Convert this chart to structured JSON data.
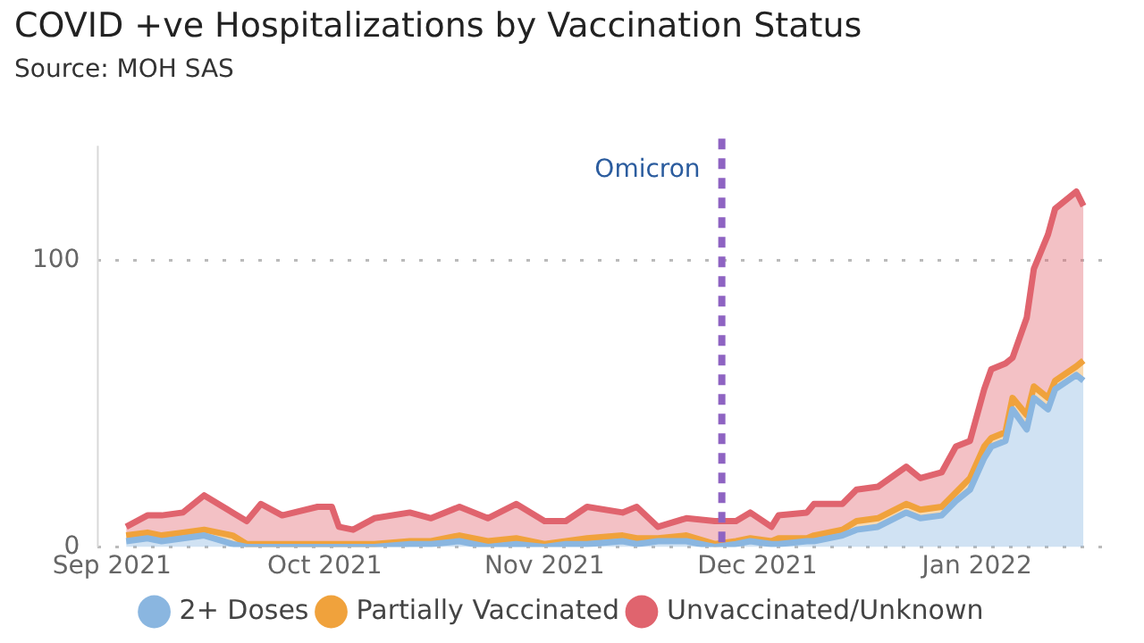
{
  "chart_data": {
    "type": "area",
    "title": "COVID +ve Hospitalizations by Vaccination Status",
    "subtitle": "Source: MOH SAS",
    "stacked": true,
    "x": [
      "2021-09-03",
      "2021-09-06",
      "2021-09-08",
      "2021-09-11",
      "2021-09-14",
      "2021-09-18",
      "2021-09-20",
      "2021-09-22",
      "2021-09-25",
      "2021-09-30",
      "2021-10-02",
      "2021-10-03",
      "2021-10-05",
      "2021-10-08",
      "2021-10-13",
      "2021-10-16",
      "2021-10-20",
      "2021-10-24",
      "2021-10-28",
      "2021-11-01",
      "2021-11-04",
      "2021-11-07",
      "2021-11-12",
      "2021-11-14",
      "2021-11-17",
      "2021-11-21",
      "2021-11-25",
      "2021-11-28",
      "2021-11-30",
      "2021-12-03",
      "2021-12-04",
      "2021-12-08",
      "2021-12-09",
      "2021-12-13",
      "2021-12-15",
      "2021-12-18",
      "2021-12-22",
      "2021-12-24",
      "2021-12-27",
      "2021-12-29",
      "2021-12-31",
      "2022-01-02",
      "2022-01-03",
      "2022-01-05",
      "2022-01-06",
      "2022-01-08",
      "2022-01-09",
      "2022-01-11",
      "2022-01-12",
      "2022-01-15",
      "2022-01-16"
    ],
    "series": [
      {
        "name": "2+ Doses",
        "color": "#8ab6e0",
        "values": [
          2,
          3,
          2,
          3,
          4,
          1,
          0,
          0,
          0,
          0,
          0,
          0,
          0,
          0,
          1,
          1,
          2,
          0,
          1,
          0,
          1,
          1,
          2,
          1,
          2,
          2,
          0,
          1,
          2,
          1,
          1,
          2,
          2,
          4,
          6,
          7,
          12,
          10,
          11,
          16,
          20,
          31,
          35,
          37,
          48,
          41,
          52,
          48,
          55,
          60,
          58
        ]
      },
      {
        "name": "Partially Vaccinated",
        "color": "#f0a23c",
        "values": [
          2,
          2,
          2,
          2,
          2,
          3,
          1,
          1,
          1,
          1,
          1,
          1,
          1,
          1,
          1,
          1,
          2,
          2,
          2,
          1,
          1,
          2,
          2,
          2,
          1,
          2,
          1,
          1,
          1,
          1,
          2,
          1,
          2,
          2,
          3,
          3,
          3,
          3,
          3,
          3,
          4,
          4,
          3,
          3,
          4,
          5,
          4,
          4,
          3,
          3,
          7
        ]
      },
      {
        "name": "Unvaccinated/Unknown",
        "color": "#e0646e",
        "values": [
          3,
          6,
          7,
          7,
          12,
          8,
          8,
          14,
          10,
          13,
          13,
          6,
          5,
          9,
          10,
          8,
          10,
          8,
          12,
          8,
          7,
          11,
          8,
          11,
          4,
          6,
          8,
          7,
          9,
          5,
          8,
          9,
          11,
          9,
          11,
          11,
          13,
          11,
          12,
          16,
          13,
          20,
          24,
          24,
          14,
          34,
          41,
          57,
          60,
          61,
          54
        ]
      }
    ],
    "xlim": [
      "2021-08-30",
      "2022-01-20"
    ],
    "xticks": [
      {
        "value": "2021-09-01",
        "label": "Sep 2021"
      },
      {
        "value": "2021-10-01",
        "label": "Oct 2021"
      },
      {
        "value": "2021-11-01",
        "label": "Nov 2021"
      },
      {
        "value": "2021-12-01",
        "label": "Dec 2021"
      },
      {
        "value": "2022-01-01",
        "label": "Jan 2022"
      }
    ],
    "ylim": [
      0,
      140
    ],
    "yticks": [
      0,
      100
    ],
    "ref_lines": [
      {
        "axis": "x",
        "value": "2021-11-26",
        "label": "Omicron",
        "color": "#8e63c2",
        "line_style": "dashed"
      }
    ],
    "grid": "y",
    "legend": "bottom",
    "marker": "none"
  }
}
